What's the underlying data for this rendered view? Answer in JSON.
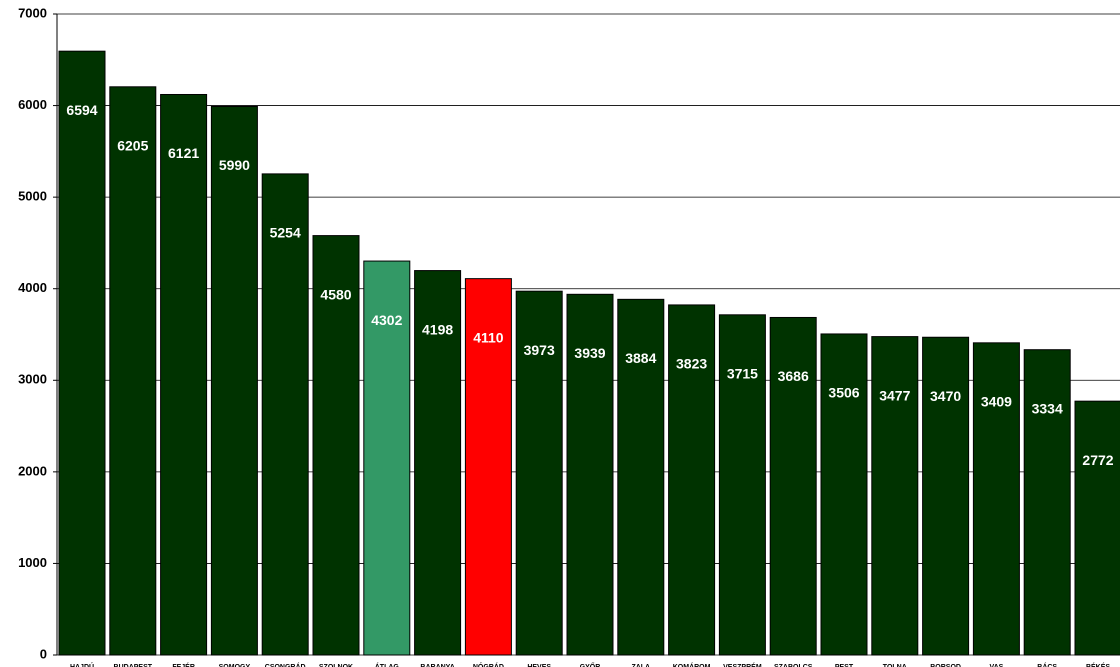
{
  "chart_data": {
    "type": "bar",
    "categories": [
      "HAJDÚ",
      "BUDAPEST",
      "FEJÉR",
      "SOMOGY",
      "CSONGRÁD",
      "SZOLNOK",
      "ÁTLAG",
      "BARANYA",
      "NÓGRÁD",
      "HEVES",
      "GYŐR",
      "ZALA",
      "KOMÁROM",
      "VESZPRÉM",
      "SZABOLCS",
      "PEST",
      "TOLNA",
      "BORSOD",
      "VAS",
      "BÁCS",
      "BÉKÉS"
    ],
    "values": [
      6594,
      6205,
      6121,
      5990,
      5254,
      4580,
      4302,
      4198,
      4110,
      3973,
      3939,
      3884,
      3823,
      3715,
      3686,
      3506,
      3477,
      3470,
      3409,
      3334,
      2772
    ],
    "colors": [
      "#003300",
      "#003300",
      "#003300",
      "#003300",
      "#003300",
      "#003300",
      "#339966",
      "#003300",
      "#ff0000",
      "#003300",
      "#003300",
      "#003300",
      "#003300",
      "#003300",
      "#003300",
      "#003300",
      "#003300",
      "#003300",
      "#003300",
      "#003300",
      "#003300"
    ],
    "ylim": [
      0,
      7000
    ],
    "yticks": [
      0,
      1000,
      2000,
      3000,
      4000,
      5000,
      6000,
      7000
    ],
    "grid": true
  }
}
